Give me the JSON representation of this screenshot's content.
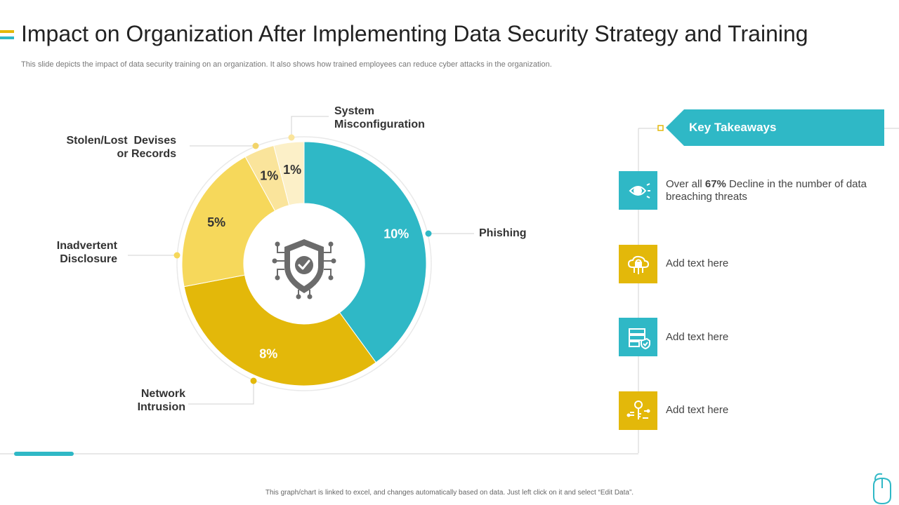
{
  "title": "Impact on Organization After Implementing Data Security Strategy and Training",
  "subtitle": "This slide depicts the impact of data security training on an organization. It also shows how trained employees can reduce cyber attacks in the organization.",
  "footer": "This graph/chart is linked to excel, and changes automatically based on data. Just left click on it and select “Edit Data”.",
  "colors": {
    "teal": "#2FB8C6",
    "gold": "#E3B80A",
    "yellow": "#F6D85B",
    "light_yellow": "#FAE49B",
    "cream": "#FCF0C8"
  },
  "chart_data": {
    "type": "pie",
    "variant": "donut",
    "center_icon": "shield-check-icon",
    "slices": [
      {
        "category": "Phishing",
        "value": 10,
        "label": "10%",
        "color": "#2FB8C6"
      },
      {
        "category": "Network Intrusion",
        "value": 8,
        "label": "8%",
        "color": "#E3B80A"
      },
      {
        "category": "Inadvertent Disclosure",
        "value": 5,
        "label": "5%",
        "color": "#F6D85B"
      },
      {
        "category": "Stolen/Lost  Devises or Records",
        "value": 1,
        "label": "1%",
        "color": "#FAE49B"
      },
      {
        "category": "System Misconfiguration",
        "value": 1,
        "label": "1%",
        "color": "#FCF0C8"
      }
    ],
    "category_lines": {
      "phishing": [
        "Phishing"
      ],
      "network": [
        "Network",
        "Intrusion"
      ],
      "inadvertent": [
        "Inadvertent",
        "Disclosure"
      ],
      "stolen": [
        "Stolen/Lost  Devises",
        "or Records"
      ],
      "system": [
        "System",
        "Misconfiguration"
      ]
    }
  },
  "takeaways": {
    "title": "Key Takeaways",
    "items": [
      {
        "icon": "eye-scan-icon",
        "color": "#2FB8C6",
        "prefix": "Over all ",
        "highlight": "67%",
        "suffix": " Decline in the number of data breaching threats"
      },
      {
        "icon": "cloud-lock-icon",
        "color": "#E3B80A",
        "text": "Add text here"
      },
      {
        "icon": "server-shield-icon",
        "color": "#2FB8C6",
        "text": "Add text here"
      },
      {
        "icon": "key-circuit-icon",
        "color": "#E3B80A",
        "text": "Add text here"
      }
    ]
  }
}
